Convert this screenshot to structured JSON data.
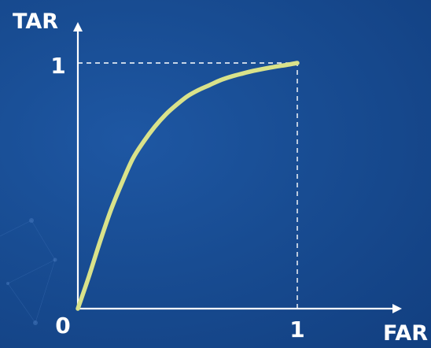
{
  "chart_data": {
    "type": "line",
    "title": "",
    "xlabel": "FAR",
    "ylabel": "TAR",
    "xlim": [
      0,
      1
    ],
    "ylim": [
      0,
      1
    ],
    "x_tick_labels": {
      "origin": "0",
      "max": "1"
    },
    "y_tick_labels": {
      "max": "1"
    },
    "grid": false,
    "legend": "none",
    "reference_lines": [
      {
        "type": "horizontal",
        "y": 1,
        "x_from": 0,
        "x_to": 1,
        "style": "dashed"
      },
      {
        "type": "vertical",
        "x": 1,
        "y_from": 0,
        "y_to": 1,
        "style": "dashed"
      }
    ],
    "series": [
      {
        "color": "#d9e28a",
        "x": [
          0,
          0.05,
          0.1,
          0.15,
          0.2,
          0.25,
          0.3,
          0.35,
          0.4,
          0.45,
          0.5,
          0.55,
          0.6,
          0.65,
          0.7,
          0.75,
          0.8,
          0.85,
          0.9,
          0.95,
          1.0
        ],
        "y": [
          0,
          0.13,
          0.27,
          0.4,
          0.51,
          0.61,
          0.68,
          0.74,
          0.79,
          0.83,
          0.865,
          0.89,
          0.91,
          0.93,
          0.945,
          0.957,
          0.968,
          0.977,
          0.985,
          0.992,
          1.0
        ]
      }
    ]
  },
  "colors": {
    "background": "#184c92",
    "axis": "#ffffff",
    "curve": "#d9e28a"
  }
}
